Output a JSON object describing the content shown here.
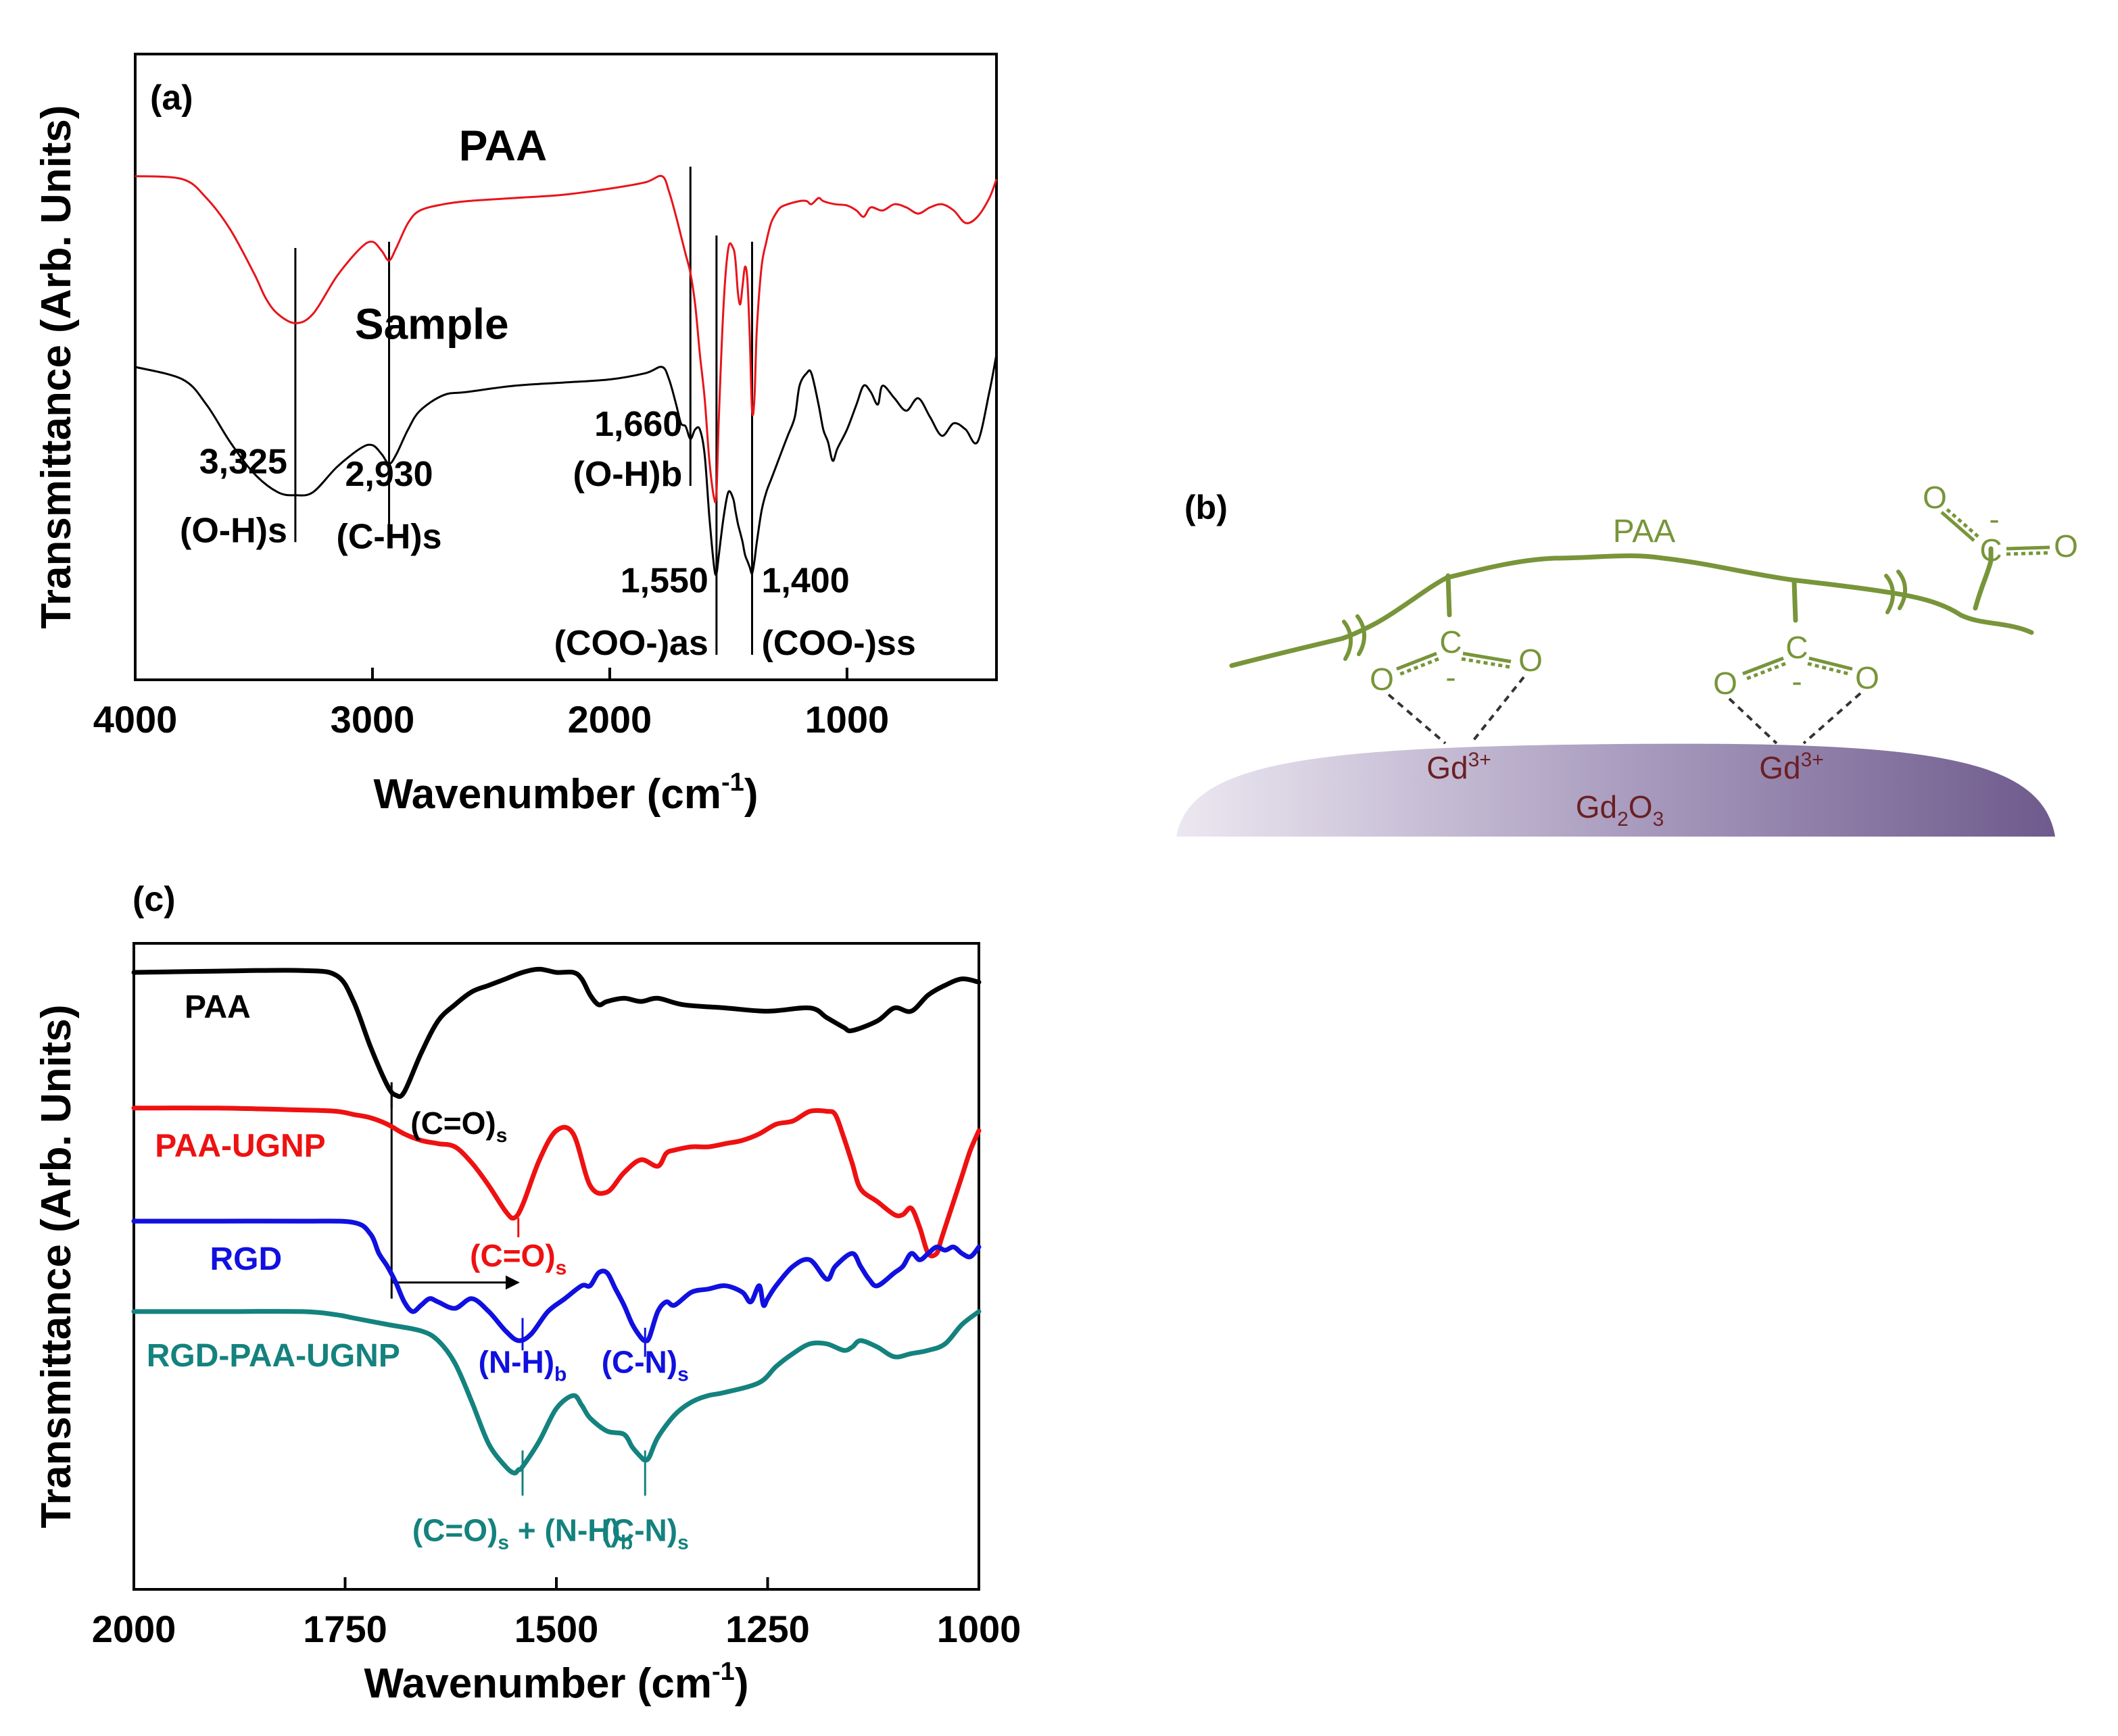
{
  "chart_data": [
    {
      "panel": "(a)",
      "type": "line",
      "xlabel_main": "Wavenumber (cm",
      "xlabel_sup": "-1",
      "xlabel_close": ")",
      "ylabel": "Transmittance (Arb. Units)",
      "xlim": [
        4000,
        370
      ],
      "ylim": [
        0,
        1
      ],
      "ticks": [
        4000,
        3000,
        2000,
        1000
      ],
      "colors": {
        "PAA": "#e8141b",
        "Sample": "#000000"
      },
      "series": [
        {
          "name": "PAA",
          "label": "PAA",
          "x": [
            4000,
            3800,
            3700,
            3600,
            3500,
            3450,
            3400,
            3325,
            3250,
            3150,
            3050,
            3000,
            2960,
            2930,
            2900,
            2850,
            2800,
            2700,
            2600,
            2400,
            2200,
            2000,
            1850,
            1780,
            1750,
            1720,
            1700,
            1680,
            1660,
            1640,
            1620,
            1600,
            1580,
            1560,
            1550,
            1540,
            1520,
            1500,
            1480,
            1470,
            1460,
            1450,
            1440,
            1430,
            1420,
            1410,
            1400,
            1390,
            1380,
            1360,
            1340,
            1320,
            1300,
            1280,
            1250,
            1200,
            1170,
            1150,
            1120,
            1100,
            1050,
            1000,
            960,
            930,
            900,
            850,
            800,
            750,
            700,
            650,
            600,
            550,
            500,
            450,
            400,
            370
          ],
          "y": [
            0.805,
            0.8,
            0.77,
            0.72,
            0.65,
            0.61,
            0.585,
            0.57,
            0.585,
            0.645,
            0.69,
            0.7,
            0.685,
            0.67,
            0.69,
            0.73,
            0.75,
            0.76,
            0.765,
            0.77,
            0.775,
            0.785,
            0.795,
            0.805,
            0.78,
            0.74,
            0.71,
            0.68,
            0.65,
            0.6,
            0.52,
            0.45,
            0.35,
            0.29,
            0.3,
            0.42,
            0.6,
            0.69,
            0.69,
            0.67,
            0.62,
            0.6,
            0.63,
            0.66,
            0.64,
            0.55,
            0.43,
            0.45,
            0.56,
            0.66,
            0.7,
            0.73,
            0.745,
            0.755,
            0.76,
            0.765,
            0.765,
            0.76,
            0.77,
            0.765,
            0.76,
            0.758,
            0.75,
            0.74,
            0.755,
            0.75,
            0.76,
            0.755,
            0.745,
            0.755,
            0.76,
            0.75,
            0.73,
            0.74,
            0.77,
            0.8
          ]
        },
        {
          "name": "Sample",
          "label": "Sample",
          "x": [
            4000,
            3800,
            3700,
            3600,
            3500,
            3400,
            3325,
            3250,
            3150,
            3050,
            3000,
            2960,
            2930,
            2900,
            2850,
            2800,
            2700,
            2600,
            2400,
            2200,
            2000,
            1850,
            1780,
            1750,
            1720,
            1700,
            1680,
            1660,
            1640,
            1620,
            1600,
            1580,
            1560,
            1550,
            1540,
            1520,
            1500,
            1480,
            1470,
            1460,
            1450,
            1440,
            1430,
            1420,
            1410,
            1400,
            1390,
            1380,
            1360,
            1340,
            1320,
            1300,
            1280,
            1250,
            1220,
            1200,
            1170,
            1150,
            1120,
            1100,
            1080,
            1060,
            1040,
            1000,
            960,
            930,
            900,
            870,
            850,
            800,
            750,
            700,
            650,
            600,
            550,
            500,
            450,
            400,
            370
          ],
          "y": [
            0.5,
            0.48,
            0.44,
            0.38,
            0.33,
            0.3,
            0.295,
            0.3,
            0.34,
            0.37,
            0.375,
            0.36,
            0.345,
            0.36,
            0.4,
            0.43,
            0.455,
            0.46,
            0.47,
            0.475,
            0.48,
            0.49,
            0.5,
            0.48,
            0.44,
            0.41,
            0.405,
            0.385,
            0.4,
            0.4,
            0.36,
            0.26,
            0.18,
            0.17,
            0.2,
            0.26,
            0.3,
            0.29,
            0.27,
            0.25,
            0.235,
            0.22,
            0.2,
            0.19,
            0.18,
            0.17,
            0.19,
            0.22,
            0.27,
            0.3,
            0.32,
            0.34,
            0.36,
            0.39,
            0.42,
            0.47,
            0.49,
            0.49,
            0.44,
            0.4,
            0.38,
            0.35,
            0.37,
            0.4,
            0.44,
            0.47,
            0.46,
            0.44,
            0.47,
            0.45,
            0.43,
            0.45,
            0.42,
            0.39,
            0.41,
            0.4,
            0.38,
            0.46,
            0.52
          ]
        }
      ],
      "label_positions": {
        "PAA": [
          2450,
          0.83
        ],
        "Sample": [
          2750,
          0.545
        ]
      },
      "annotations": [
        {
          "x": 3325,
          "value": "3,325",
          "name": "(O-H)s",
          "anchor": "end",
          "lx": 3325,
          "ly1": 0.33,
          "ly2": 0.22
        },
        {
          "x": 2930,
          "value": "2,930",
          "name": "(C-H)s",
          "anchor": "middle",
          "lx": 2930,
          "ly1": 0.31,
          "ly2": 0.21
        },
        {
          "x": 1660,
          "value": "1,660",
          "name": "(O-H)b",
          "anchor": "end",
          "lx": 1660,
          "ly1": 0.39,
          "ly2": 0.31
        },
        {
          "x": 1550,
          "value": "1,550",
          "name": "(COO-)as",
          "anchor": "end",
          "lx": 1550,
          "ly1": 0.14,
          "ly2": 0.04
        },
        {
          "x": 1400,
          "value": "1,400",
          "name": "(COO-)ss",
          "anchor": "start",
          "lx": 1400,
          "ly1": 0.14,
          "ly2": 0.04
        }
      ],
      "peak_lines": [
        {
          "x": 3325,
          "y1": 0.69,
          "y2": 0.22
        },
        {
          "x": 2930,
          "y1": 0.7,
          "y2": 0.21
        },
        {
          "x": 1660,
          "y1": 0.82,
          "y2": 0.31
        },
        {
          "x": 1550,
          "y1": 0.71,
          "y2": 0.04
        },
        {
          "x": 1400,
          "y1": 0.7,
          "y2": 0.04
        }
      ]
    },
    {
      "panel": "(c)",
      "type": "line",
      "xlabel_main": "Wavenumber (cm",
      "xlabel_sup": "-1",
      "xlabel_close": ")",
      "ylabel": "Transmittance (Arb. Units)",
      "xlim": [
        2000,
        1000
      ],
      "ylim": [
        0,
        1
      ],
      "ticks": [
        2000,
        1750,
        1500,
        1250,
        1000
      ],
      "colors": {
        "PAA": "#000000",
        "PAA-UGNP": "#ee1111",
        "RGD": "#1010e0",
        "RGD-PAA-UGNP": "#14827e"
      },
      "series": [
        {
          "name": "PAA",
          "x": [
            2000,
            1900,
            1800,
            1760,
            1740,
            1720,
            1700,
            1690,
            1680,
            1660,
            1640,
            1620,
            1600,
            1580,
            1560,
            1540,
            1520,
            1500,
            1480,
            1470,
            1460,
            1450,
            1440,
            1420,
            1400,
            1380,
            1350,
            1300,
            1250,
            1200,
            1180,
            1160,
            1150,
            1120,
            1100,
            1080,
            1060,
            1040,
            1020,
            1000
          ],
          "y": [
            0.955,
            0.957,
            0.958,
            0.95,
            0.91,
            0.84,
            0.78,
            0.765,
            0.77,
            0.83,
            0.88,
            0.905,
            0.925,
            0.935,
            0.945,
            0.955,
            0.96,
            0.955,
            0.955,
            0.945,
            0.92,
            0.905,
            0.91,
            0.915,
            0.91,
            0.915,
            0.905,
            0.9,
            0.895,
            0.9,
            0.885,
            0.87,
            0.865,
            0.88,
            0.9,
            0.895,
            0.92,
            0.935,
            0.945,
            0.94
          ]
        },
        {
          "name": "PAA-UGNP",
          "x": [
            2000,
            1900,
            1800,
            1760,
            1740,
            1720,
            1700,
            1680,
            1660,
            1640,
            1620,
            1600,
            1580,
            1560,
            1550,
            1540,
            1520,
            1500,
            1480,
            1460,
            1440,
            1420,
            1400,
            1380,
            1370,
            1360,
            1340,
            1320,
            1300,
            1280,
            1260,
            1240,
            1220,
            1200,
            1180,
            1170,
            1160,
            1150,
            1140,
            1120,
            1100,
            1090,
            1080,
            1070,
            1060,
            1050,
            1045,
            1040,
            1030,
            1020,
            1010,
            1000
          ],
          "y": [
            0.745,
            0.745,
            0.742,
            0.74,
            0.735,
            0.73,
            0.72,
            0.705,
            0.695,
            0.69,
            0.685,
            0.66,
            0.625,
            0.585,
            0.575,
            0.595,
            0.665,
            0.71,
            0.705,
            0.625,
            0.615,
            0.645,
            0.665,
            0.655,
            0.675,
            0.68,
            0.685,
            0.685,
            0.69,
            0.695,
            0.705,
            0.72,
            0.725,
            0.74,
            0.74,
            0.735,
            0.7,
            0.66,
            0.62,
            0.6,
            0.58,
            0.58,
            0.59,
            0.56,
            0.52,
            0.52,
            0.54,
            0.56,
            0.6,
            0.64,
            0.68,
            0.71
          ]
        },
        {
          "name": "RGD",
          "x": [
            2000,
            1900,
            1800,
            1740,
            1720,
            1710,
            1700,
            1690,
            1680,
            1670,
            1660,
            1650,
            1640,
            1620,
            1600,
            1580,
            1560,
            1545,
            1530,
            1510,
            1490,
            1470,
            1460,
            1450,
            1440,
            1430,
            1420,
            1410,
            1400,
            1395,
            1390,
            1380,
            1370,
            1360,
            1340,
            1320,
            1300,
            1280,
            1270,
            1260,
            1255,
            1250,
            1240,
            1220,
            1200,
            1180,
            1170,
            1150,
            1140,
            1130,
            1120,
            1100,
            1090,
            1080,
            1070,
            1060,
            1050,
            1040,
            1030,
            1020,
            1010,
            1000
          ],
          "y": [
            0.57,
            0.57,
            0.57,
            0.568,
            0.55,
            0.52,
            0.5,
            0.475,
            0.445,
            0.43,
            0.44,
            0.45,
            0.445,
            0.435,
            0.45,
            0.43,
            0.4,
            0.385,
            0.395,
            0.43,
            0.45,
            0.47,
            0.47,
            0.49,
            0.49,
            0.465,
            0.44,
            0.41,
            0.39,
            0.385,
            0.39,
            0.43,
            0.445,
            0.44,
            0.46,
            0.465,
            0.47,
            0.46,
            0.445,
            0.47,
            0.44,
            0.45,
            0.47,
            0.5,
            0.51,
            0.48,
            0.5,
            0.52,
            0.5,
            0.48,
            0.47,
            0.49,
            0.5,
            0.52,
            0.51,
            0.52,
            0.53,
            0.525,
            0.53,
            0.52,
            0.515,
            0.53
          ]
        },
        {
          "name": "RGD-PAA-UGNP",
          "x": [
            2000,
            1900,
            1800,
            1760,
            1740,
            1700,
            1660,
            1640,
            1620,
            1600,
            1580,
            1560,
            1550,
            1545,
            1540,
            1520,
            1500,
            1480,
            1470,
            1460,
            1440,
            1420,
            1410,
            1400,
            1395,
            1390,
            1380,
            1360,
            1340,
            1320,
            1300,
            1260,
            1240,
            1220,
            1200,
            1180,
            1160,
            1150,
            1140,
            1120,
            1100,
            1080,
            1060,
            1040,
            1020,
            1000
          ],
          "y": [
            0.43,
            0.43,
            0.43,
            0.425,
            0.42,
            0.41,
            0.4,
            0.385,
            0.35,
            0.29,
            0.225,
            0.19,
            0.18,
            0.185,
            0.19,
            0.23,
            0.28,
            0.3,
            0.285,
            0.265,
            0.245,
            0.24,
            0.22,
            0.205,
            0.2,
            0.205,
            0.235,
            0.27,
            0.29,
            0.3,
            0.305,
            0.32,
            0.345,
            0.365,
            0.38,
            0.38,
            0.37,
            0.375,
            0.385,
            0.375,
            0.36,
            0.365,
            0.37,
            0.38,
            0.41,
            0.43
          ]
        }
      ],
      "series_labels": [
        {
          "series": "PAA",
          "text": "PAA",
          "x": 1940,
          "y": 0.885,
          "anchor": "start"
        },
        {
          "series": "PAA-UGNP",
          "text": "PAA-UGNP",
          "x": 1975,
          "y": 0.67,
          "anchor": "start"
        },
        {
          "series": "RGD",
          "text": "RGD",
          "x": 1910,
          "y": 0.495,
          "anchor": "start"
        },
        {
          "series": "RGD-PAA-UGNP",
          "text": "RGD-PAA-UGNP",
          "x": 1985,
          "y": 0.345,
          "anchor": "start"
        }
      ],
      "peak_labels": [
        {
          "series": "PAA",
          "main": "(C=O)",
          "sub": "s",
          "tail": "",
          "x": 1695,
          "y": 0.705,
          "anchor": "start",
          "tick_y1": 0.785,
          "tick_y2": 0.745
        },
        {
          "series": "PAA-UGNP",
          "main": "(C=O)",
          "sub": "s",
          "tail": "",
          "x": 1545,
          "y": 0.5,
          "anchor": "middle",
          "tick_y1": 0.575,
          "tick_y2": 0.545
        },
        {
          "series": "RGD",
          "main": "(N-H)",
          "sub": "b",
          "tail": "",
          "x": 1540,
          "y": 0.335,
          "anchor": "middle",
          "tick_y1": 0.42,
          "tick_y2": 0.37
        },
        {
          "series": "RGD",
          "main": "(C-N)",
          "sub": "s",
          "tail": "",
          "x": 1395,
          "y": 0.335,
          "anchor": "middle",
          "tick_y1": 0.405,
          "tick_y2": 0.36
        },
        {
          "series": "RGD-PAA-UGNP",
          "main": "(C=O)",
          "sub": "s",
          "tail": " + (N-H)",
          "sub2": "b",
          "x": 1540,
          "y": 0.075,
          "anchor": "middle",
          "tick_y1": 0.215,
          "tick_y2": 0.145
        },
        {
          "series": "RGD-PAA-UGNP",
          "main": "(C-N)",
          "sub": "s",
          "tail": "",
          "x": 1395,
          "y": 0.075,
          "anchor": "middle",
          "tick_y1": 0.215,
          "tick_y2": 0.145
        }
      ],
      "shift_marker": {
        "from_x": 1695,
        "to_x": 1545,
        "y_top": 0.77,
        "y_bottom": 0.45,
        "arrow_y": 0.475
      }
    }
  ],
  "panel_a": {
    "label": "(a)"
  },
  "panel_b": {
    "label": "(b)",
    "polymer": "PAA",
    "carboxyl_carbon": "C",
    "carboxyl_oxygen": "O",
    "charge": "-",
    "ion": "Gd",
    "ion_charge": "3+",
    "surface_main": "Gd",
    "surface_sub1": "2",
    "surface_mid": "O",
    "surface_sub2": "3",
    "polymer_color": "#78953a",
    "ion_color": "#6b1f24",
    "surface_color": "#6e5a8c"
  },
  "panel_c": {
    "label": "(c)"
  }
}
